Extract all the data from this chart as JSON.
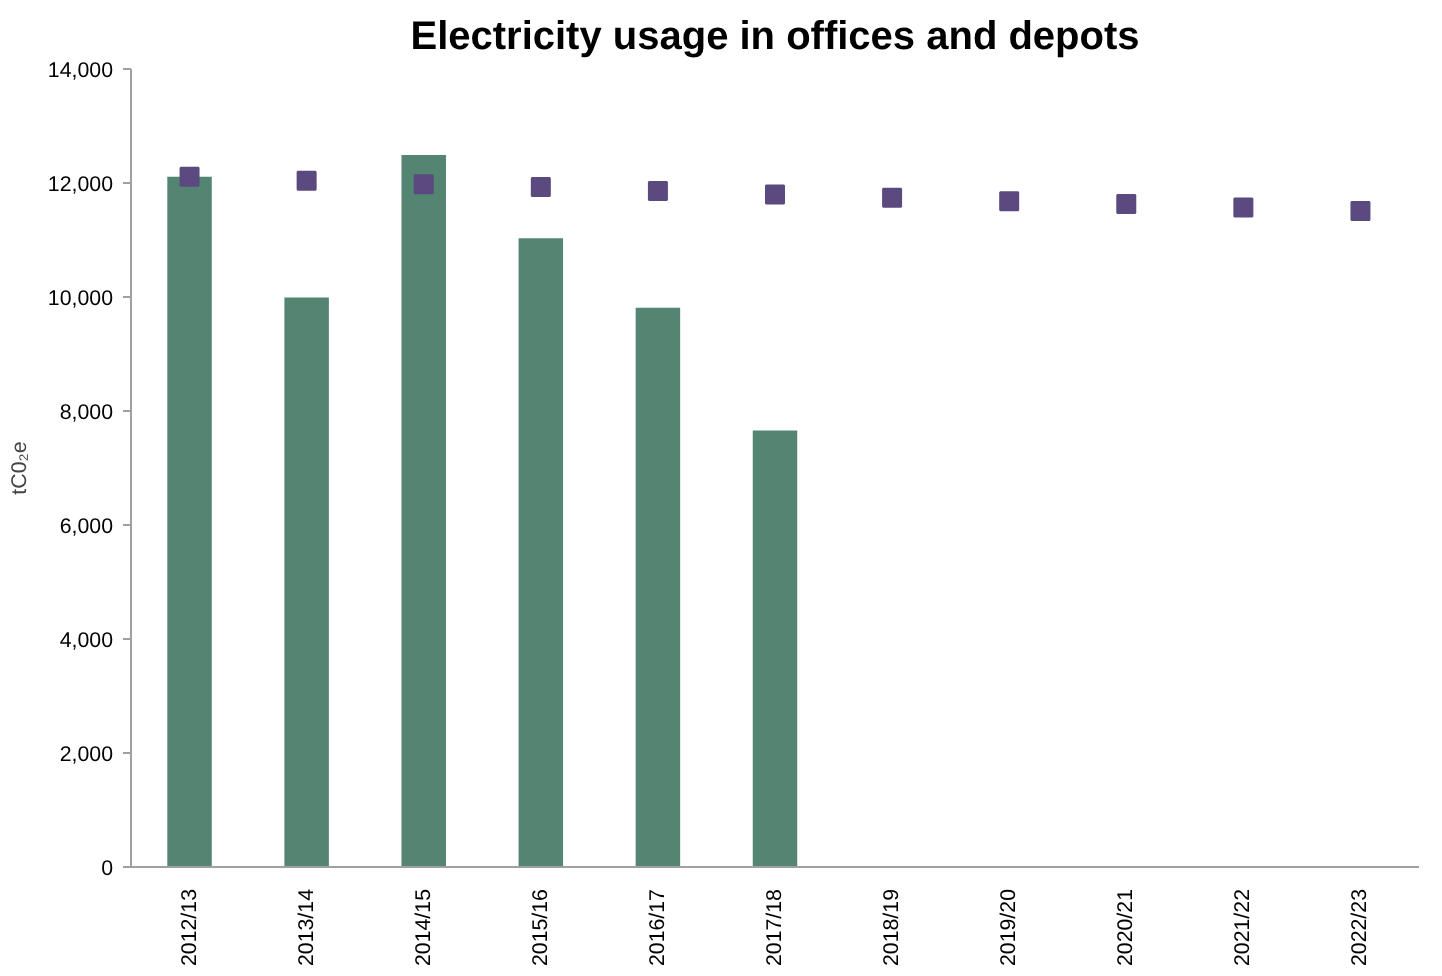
{
  "chart_data": {
    "type": "bar",
    "title": "Electricity usage in offices and depots",
    "ylabel": "tC0₂e",
    "categories": [
      "2012/13",
      "2013/14",
      "2014/15",
      "2015/16",
      "2016/17",
      "2017/18",
      "2018/19",
      "2019/20",
      "2020/21",
      "2021/22",
      "2022/23"
    ],
    "series": [
      {
        "color": "#548572",
        "values": [
          12110,
          9990,
          12490,
          11030,
          9810,
          7660,
          null,
          null,
          null,
          null,
          null
        ]
      },
      {
        "type": "scatter",
        "marker": "square",
        "color": "#5b4a7f",
        "values": [
          12110,
          12040,
          11980,
          11930,
          11860,
          11800,
          11740,
          11680,
          11630,
          11570,
          11510
        ]
      }
    ],
    "ylim": [
      0,
      14000
    ],
    "yticks": [
      {
        "value": 0,
        "label": "0"
      },
      {
        "value": 2000,
        "label": "2,000"
      },
      {
        "value": 4000,
        "label": "4,000"
      },
      {
        "value": 6000,
        "label": "6,000"
      },
      {
        "value": 8000,
        "label": "8,000"
      },
      {
        "value": 10000,
        "label": "10,000"
      },
      {
        "value": 12000,
        "label": "12,000"
      },
      {
        "value": 14000,
        "label": "14,000"
      }
    ],
    "grid": false
  }
}
